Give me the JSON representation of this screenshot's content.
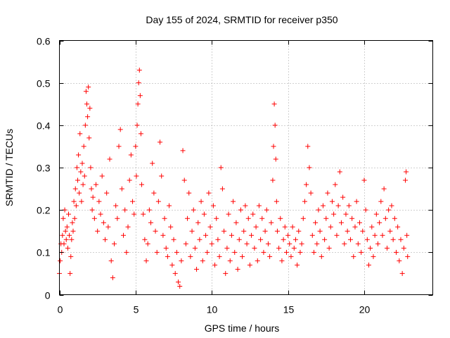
{
  "chart_data": {
    "type": "scatter",
    "title": "Day 155 of 2024, SRMTID for receiver p350",
    "xlabel": "GPS time / hours",
    "ylabel": "SRMTID / TECUs",
    "xlim": [
      0,
      24.5
    ],
    "ylim": [
      0,
      0.6
    ],
    "xticks": [
      0,
      5,
      10,
      15,
      20
    ],
    "xtick_labels": [
      "0",
      "5",
      "10",
      "15",
      "20"
    ],
    "yticks": [
      0,
      0.1,
      0.2,
      0.3,
      0.4,
      0.5,
      0.6
    ],
    "ytick_labels": [
      "0",
      "0.1",
      "0.2",
      "0.3",
      "0.4",
      "0.5",
      "0.6"
    ],
    "grid": true,
    "marker": "+",
    "color": "#ff0000",
    "series": [
      {
        "name": "p350",
        "points": [
          [
            0.0,
            0.05
          ],
          [
            0.05,
            0.08
          ],
          [
            0.1,
            0.12
          ],
          [
            0.15,
            0.1
          ],
          [
            0.2,
            0.14
          ],
          [
            0.25,
            0.18
          ],
          [
            0.3,
            0.12
          ],
          [
            0.35,
            0.2
          ],
          [
            0.4,
            0.15
          ],
          [
            0.45,
            0.13
          ],
          [
            0.5,
            0.16
          ],
          [
            0.55,
            0.11
          ],
          [
            0.6,
            0.19
          ],
          [
            0.65,
            0.14
          ],
          [
            0.7,
            0.05
          ],
          [
            0.75,
            0.09
          ],
          [
            0.8,
            0.13
          ],
          [
            0.85,
            0.17
          ],
          [
            0.9,
            0.15
          ],
          [
            0.95,
            0.22
          ],
          [
            1.0,
            0.18
          ],
          [
            1.05,
            0.25
          ],
          [
            1.1,
            0.21
          ],
          [
            1.15,
            0.3
          ],
          [
            1.2,
            0.27
          ],
          [
            1.25,
            0.33
          ],
          [
            1.3,
            0.24
          ],
          [
            1.35,
            0.38
          ],
          [
            1.4,
            0.29
          ],
          [
            1.45,
            0.22
          ],
          [
            1.5,
            0.31
          ],
          [
            1.55,
            0.26
          ],
          [
            1.6,
            0.35
          ],
          [
            1.65,
            0.28
          ],
          [
            1.7,
            0.4
          ],
          [
            1.75,
            0.48
          ],
          [
            1.8,
            0.45
          ],
          [
            1.85,
            0.42
          ],
          [
            1.9,
            0.49
          ],
          [
            1.95,
            0.37
          ],
          [
            2.0,
            0.44
          ],
          [
            2.05,
            0.3
          ],
          [
            2.1,
            0.25
          ],
          [
            2.15,
            0.2
          ],
          [
            2.2,
            0.23
          ],
          [
            2.3,
            0.18
          ],
          [
            2.4,
            0.26
          ],
          [
            2.5,
            0.15
          ],
          [
            2.6,
            0.22
          ],
          [
            2.7,
            0.19
          ],
          [
            2.8,
            0.28
          ],
          [
            2.9,
            0.17
          ],
          [
            3.0,
            0.13
          ],
          [
            3.1,
            0.24
          ],
          [
            3.2,
            0.16
          ],
          [
            3.3,
            0.32
          ],
          [
            3.4,
            0.08
          ],
          [
            3.5,
            0.04
          ],
          [
            3.6,
            0.12
          ],
          [
            3.7,
            0.21
          ],
          [
            3.8,
            0.18
          ],
          [
            3.9,
            0.35
          ],
          [
            4.0,
            0.39
          ],
          [
            4.1,
            0.25
          ],
          [
            4.2,
            0.14
          ],
          [
            4.3,
            0.2
          ],
          [
            4.4,
            0.1
          ],
          [
            4.5,
            0.16
          ],
          [
            4.6,
            0.27
          ],
          [
            4.7,
            0.33
          ],
          [
            4.8,
            0.22
          ],
          [
            4.9,
            0.19
          ],
          [
            5.0,
            0.35
          ],
          [
            5.05,
            0.28
          ],
          [
            5.1,
            0.4
          ],
          [
            5.15,
            0.45
          ],
          [
            5.2,
            0.5
          ],
          [
            5.25,
            0.53
          ],
          [
            5.3,
            0.47
          ],
          [
            5.35,
            0.38
          ],
          [
            5.4,
            0.26
          ],
          [
            5.5,
            0.19
          ],
          [
            5.6,
            0.13
          ],
          [
            5.7,
            0.08
          ],
          [
            5.8,
            0.12
          ],
          [
            5.9,
            0.2
          ],
          [
            6.0,
            0.17
          ],
          [
            6.1,
            0.31
          ],
          [
            6.2,
            0.24
          ],
          [
            6.3,
            0.15
          ],
          [
            6.4,
            0.1
          ],
          [
            6.5,
            0.22
          ],
          [
            6.6,
            0.36
          ],
          [
            6.7,
            0.28
          ],
          [
            6.8,
            0.14
          ],
          [
            6.9,
            0.18
          ],
          [
            7.0,
            0.11
          ],
          [
            7.1,
            0.09
          ],
          [
            7.2,
            0.21
          ],
          [
            7.3,
            0.16
          ],
          [
            7.4,
            0.07
          ],
          [
            7.5,
            0.13
          ],
          [
            7.6,
            0.05
          ],
          [
            7.7,
            0.1
          ],
          [
            7.8,
            0.03
          ],
          [
            7.9,
            0.02
          ],
          [
            8.0,
            0.08
          ],
          [
            8.1,
            0.34
          ],
          [
            8.2,
            0.27
          ],
          [
            8.3,
            0.12
          ],
          [
            8.4,
            0.18
          ],
          [
            8.5,
            0.24
          ],
          [
            8.6,
            0.09
          ],
          [
            8.7,
            0.15
          ],
          [
            8.8,
            0.2
          ],
          [
            8.9,
            0.11
          ],
          [
            9.0,
            0.06
          ],
          [
            9.1,
            0.17
          ],
          [
            9.2,
            0.13
          ],
          [
            9.3,
            0.22
          ],
          [
            9.4,
            0.08
          ],
          [
            9.5,
            0.19
          ],
          [
            9.6,
            0.14
          ],
          [
            9.7,
            0.1
          ],
          [
            9.8,
            0.24
          ],
          [
            9.9,
            0.16
          ],
          [
            10.0,
            0.12
          ],
          [
            10.1,
            0.21
          ],
          [
            10.2,
            0.07
          ],
          [
            10.3,
            0.18
          ],
          [
            10.4,
            0.13
          ],
          [
            10.5,
            0.09
          ],
          [
            10.6,
            0.3
          ],
          [
            10.7,
            0.25
          ],
          [
            10.8,
            0.15
          ],
          [
            10.9,
            0.05
          ],
          [
            11.0,
            0.11
          ],
          [
            11.1,
            0.19
          ],
          [
            11.2,
            0.08
          ],
          [
            11.3,
            0.14
          ],
          [
            11.4,
            0.22
          ],
          [
            11.5,
            0.1
          ],
          [
            11.6,
            0.17
          ],
          [
            11.7,
            0.06
          ],
          [
            11.8,
            0.13
          ],
          [
            11.9,
            0.2
          ],
          [
            12.0,
            0.09
          ],
          [
            12.1,
            0.15
          ],
          [
            12.2,
            0.21
          ],
          [
            12.3,
            0.12
          ],
          [
            12.4,
            0.18
          ],
          [
            12.5,
            0.07
          ],
          [
            12.6,
            0.14
          ],
          [
            12.7,
            0.19
          ],
          [
            12.8,
            0.11
          ],
          [
            12.9,
            0.16
          ],
          [
            13.0,
            0.08
          ],
          [
            13.1,
            0.21
          ],
          [
            13.2,
            0.13
          ],
          [
            13.3,
            0.18
          ],
          [
            13.4,
            0.1
          ],
          [
            13.5,
            0.15
          ],
          [
            13.6,
            0.2
          ],
          [
            13.7,
            0.12
          ],
          [
            13.8,
            0.09
          ],
          [
            13.9,
            0.17
          ],
          [
            14.0,
            0.27
          ],
          [
            14.05,
            0.35
          ],
          [
            14.1,
            0.45
          ],
          [
            14.15,
            0.4
          ],
          [
            14.2,
            0.32
          ],
          [
            14.25,
            0.22
          ],
          [
            14.3,
            0.15
          ],
          [
            14.4,
            0.11
          ],
          [
            14.5,
            0.18
          ],
          [
            14.6,
            0.08
          ],
          [
            14.7,
            0.13
          ],
          [
            14.8,
            0.16
          ],
          [
            14.9,
            0.1
          ],
          [
            15.0,
            0.14
          ],
          [
            15.1,
            0.12
          ],
          [
            15.2,
            0.09
          ],
          [
            15.3,
            0.16
          ],
          [
            15.4,
            0.11
          ],
          [
            15.5,
            0.13
          ],
          [
            15.6,
            0.07
          ],
          [
            15.7,
            0.15
          ],
          [
            15.8,
            0.1
          ],
          [
            15.9,
            0.12
          ],
          [
            16.0,
            0.18
          ],
          [
            16.1,
            0.22
          ],
          [
            16.2,
            0.26
          ],
          [
            16.3,
            0.35
          ],
          [
            16.4,
            0.3
          ],
          [
            16.5,
            0.24
          ],
          [
            16.6,
            0.14
          ],
          [
            16.7,
            0.1
          ],
          [
            16.8,
            0.17
          ],
          [
            16.9,
            0.12
          ],
          [
            17.0,
            0.2
          ],
          [
            17.1,
            0.15
          ],
          [
            17.2,
            0.09
          ],
          [
            17.3,
            0.21
          ],
          [
            17.4,
            0.13
          ],
          [
            17.5,
            0.18
          ],
          [
            17.6,
            0.24
          ],
          [
            17.7,
            0.11
          ],
          [
            17.8,
            0.16
          ],
          [
            17.9,
            0.22
          ],
          [
            18.0,
            0.19
          ],
          [
            18.1,
            0.26
          ],
          [
            18.2,
            0.14
          ],
          [
            18.3,
            0.21
          ],
          [
            18.4,
            0.29
          ],
          [
            18.5,
            0.17
          ],
          [
            18.6,
            0.23
          ],
          [
            18.7,
            0.12
          ],
          [
            18.8,
            0.19
          ],
          [
            18.9,
            0.15
          ],
          [
            19.0,
            0.21
          ],
          [
            19.1,
            0.13
          ],
          [
            19.2,
            0.18
          ],
          [
            19.3,
            0.09
          ],
          [
            19.4,
            0.16
          ],
          [
            19.5,
            0.22
          ],
          [
            19.6,
            0.12
          ],
          [
            19.7,
            0.17
          ],
          [
            19.8,
            0.1
          ],
          [
            19.9,
            0.15
          ],
          [
            20.0,
            0.27
          ],
          [
            20.1,
            0.2
          ],
          [
            20.2,
            0.13
          ],
          [
            20.3,
            0.07
          ],
          [
            20.4,
            0.11
          ],
          [
            20.5,
            0.16
          ],
          [
            20.6,
            0.09
          ],
          [
            20.7,
            0.14
          ],
          [
            20.8,
            0.19
          ],
          [
            20.9,
            0.12
          ],
          [
            21.0,
            0.17
          ],
          [
            21.1,
            0.22
          ],
          [
            21.2,
            0.14
          ],
          [
            21.3,
            0.25
          ],
          [
            21.4,
            0.18
          ],
          [
            21.5,
            0.11
          ],
          [
            21.6,
            0.2
          ],
          [
            21.7,
            0.15
          ],
          [
            21.8,
            0.21
          ],
          [
            21.9,
            0.13
          ],
          [
            22.0,
            0.18
          ],
          [
            22.1,
            0.1
          ],
          [
            22.2,
            0.16
          ],
          [
            22.3,
            0.08
          ],
          [
            22.4,
            0.13
          ],
          [
            22.5,
            0.05
          ],
          [
            22.6,
            0.11
          ],
          [
            22.7,
            0.27
          ],
          [
            22.75,
            0.29
          ],
          [
            22.8,
            0.14
          ],
          [
            22.85,
            0.09
          ]
        ]
      }
    ]
  }
}
